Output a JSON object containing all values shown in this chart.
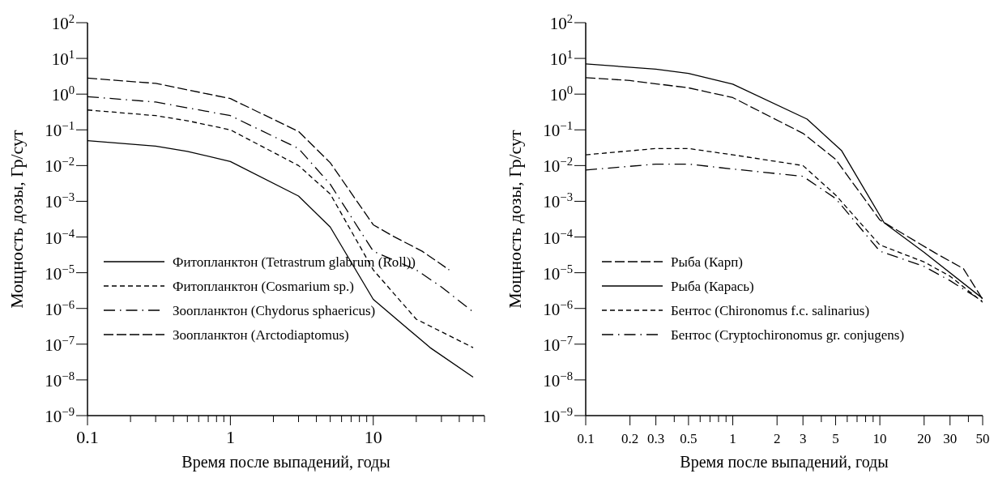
{
  "chart_data": [
    {
      "type": "line",
      "xlabel": "Время после выпадений, годы",
      "ylabel": "Мощность дозы, Гр/сут",
      "log": "xy",
      "legend": "bottom left",
      "xlim": [
        0.1,
        60
      ],
      "ylim": [
        1e-09,
        100
      ],
      "xticks": [
        0.1,
        {
          "value": 0.2,
          "label": null
        },
        {
          "value": 0.3,
          "label": null
        },
        {
          "value": 0.4,
          "label": null
        },
        {
          "value": 0.5,
          "label": null
        },
        {
          "value": 0.6,
          "label": null
        },
        {
          "value": 0.7,
          "label": null
        },
        {
          "value": 0.8,
          "label": null
        },
        {
          "value": 0.9,
          "label": null
        },
        1,
        {
          "value": 2,
          "label": null
        },
        {
          "value": 3,
          "label": null
        },
        {
          "value": 4,
          "label": null
        },
        {
          "value": 5,
          "label": null
        },
        {
          "value": 6,
          "label": null
        },
        {
          "value": 7,
          "label": null
        },
        {
          "value": 8,
          "label": null
        },
        {
          "value": 9,
          "label": null
        },
        10,
        {
          "value": 20,
          "label": null
        },
        {
          "value": 30,
          "label": null
        },
        {
          "value": 40,
          "label": null
        },
        {
          "value": 50,
          "label": null
        },
        {
          "value": 60,
          "label": null
        }
      ],
      "yticks": [
        {
          "value": 1e-09,
          "label": "10$^{−9}$"
        },
        {
          "value": 1e-08,
          "label": "10$^{−8}$"
        },
        {
          "value": 1e-07,
          "label": "10$^{−7}$"
        },
        {
          "value": 1e-06,
          "label": "10$^{−6}$"
        },
        {
          "value": 1e-05,
          "label": "10$^{−5}$"
        },
        {
          "value": 0.0001,
          "label": "10$^{−4}$"
        },
        {
          "value": 0.001,
          "label": "10$^{−3}$"
        },
        {
          "value": 0.01,
          "label": "10$^{−2}$"
        },
        {
          "value": 0.1,
          "label": "10$^{−1}$"
        },
        {
          "value": 1,
          "label": "10$^{0}$"
        },
        {
          "value": 10,
          "label": "10$^{1}$"
        },
        {
          "value": 100,
          "label": "10$^{2}$"
        }
      ],
      "series": [
        {
          "name": "Фитопланктон (Tetrastrum glabrum (Roll))",
          "color": "#000000",
          "line_style": "solid",
          "x": [
            0.1,
            0.3,
            0.5,
            1,
            3,
            5,
            10,
            25,
            50
          ],
          "values": [
            0.05,
            0.035,
            0.025,
            0.013,
            0.0014,
            0.00019,
            1.8e-06,
            8e-08,
            1.2e-08
          ]
        },
        {
          "name": "Фитопланктон (Cosmarium sp.)",
          "color": "#000000",
          "line_style": "dashed",
          "x": [
            0.1,
            0.3,
            0.5,
            1,
            3,
            5,
            10,
            20,
            50
          ],
          "values": [
            0.36,
            0.25,
            0.18,
            0.1,
            0.01,
            0.0016,
            1.2e-05,
            5e-07,
            8e-08
          ]
        },
        {
          "name": "Зоопланктон (Chydorus sphaericus)",
          "color": "#000000",
          "line_style": "dashdot",
          "x": [
            0.1,
            0.3,
            1,
            3,
            5,
            10,
            20,
            30,
            50
          ],
          "values": [
            0.85,
            0.6,
            0.25,
            0.03,
            0.003,
            4e-05,
            1.2e-05,
            4e-06,
            8e-07
          ]
        },
        {
          "name": "Зоопланктон (Arctodiaptomus)",
          "color": "#000000",
          "line_style": "longdash",
          "x": [
            0.1,
            0.3,
            1,
            3,
            5,
            10,
            13.5,
            22,
            34
          ],
          "values": [
            2.8,
            2.0,
            0.75,
            0.09,
            0.012,
            0.00022,
            0.00011,
            4e-05,
            1.2e-05
          ]
        }
      ]
    },
    {
      "type": "line",
      "xlabel": "Время после выпадений, годы",
      "ylabel": "Мощность дозы, Гр/сут",
      "log": "xy",
      "legend": "bottom left",
      "xlim": [
        0.1,
        50
      ],
      "ylim": [
        1e-09,
        100
      ],
      "xticks": [
        0.1,
        {
          "value": 0.2,
          "label": "0.2"
        },
        {
          "value": 0.3,
          "label": "0.3"
        },
        {
          "value": 0.4,
          "label": null
        },
        {
          "value": 0.5,
          "label": "0.5"
        },
        {
          "value": 0.6,
          "label": null
        },
        {
          "value": 0.7,
          "label": null
        },
        {
          "value": 0.8,
          "label": null
        },
        {
          "value": 0.9,
          "label": null
        },
        1,
        {
          "value": 2,
          "label": "2"
        },
        {
          "value": 3,
          "label": "3"
        },
        {
          "value": 4,
          "label": null
        },
        {
          "value": 5,
          "label": "5"
        },
        {
          "value": 6,
          "label": null
        },
        {
          "value": 7,
          "label": null
        },
        {
          "value": 8,
          "label": null
        },
        {
          "value": 9,
          "label": null
        },
        10,
        {
          "value": 20,
          "label": "20"
        },
        {
          "value": 30,
          "label": "30"
        },
        {
          "value": 40,
          "label": null
        },
        {
          "value": 50,
          "label": "50"
        }
      ],
      "yticks": [
        {
          "value": 1e-09,
          "label": "10$^{−9}$"
        },
        {
          "value": 1e-08,
          "label": "10$^{−8}$"
        },
        {
          "value": 1e-07,
          "label": "10$^{−7}$"
        },
        {
          "value": 1e-06,
          "label": "10$^{−6}$"
        },
        {
          "value": 1e-05,
          "label": "10$^{−5}$"
        },
        {
          "value": 0.0001,
          "label": "10$^{−4}$"
        },
        {
          "value": 0.001,
          "label": "10$^{−3}$"
        },
        {
          "value": 0.01,
          "label": "10$^{−2}$"
        },
        {
          "value": 0.1,
          "label": "10$^{−1}$"
        },
        {
          "value": 1,
          "label": "10$^{0}$"
        },
        {
          "value": 10,
          "label": "10$^{1}$"
        },
        {
          "value": 100,
          "label": "10$^{2}$"
        }
      ],
      "series": [
        {
          "name": "Рыба (Карп)",
          "color": "#000000",
          "line_style": "longdash",
          "x": [
            0.1,
            0.2,
            0.5,
            1,
            3,
            5,
            10,
            24,
            37,
            50
          ],
          "values": [
            2.9,
            2.4,
            1.5,
            0.8,
            0.08,
            0.015,
            0.0003,
            3.5e-05,
            1.3e-05,
            1.8e-06
          ]
        },
        {
          "name": "Рыба (Карась)",
          "color": "#000000",
          "line_style": "solid",
          "x": [
            0.1,
            0.3,
            0.5,
            1,
            3.2,
            5.5,
            10.7,
            20,
            50
          ],
          "values": [
            7,
            5,
            3.8,
            1.9,
            0.2,
            0.026,
            0.00025,
            3.7e-05,
            1.9e-06
          ]
        },
        {
          "name": "Бентос (Chironomus f.c. salinarius)",
          "color": "#000000",
          "line_style": "dashed",
          "x": [
            0.1,
            0.3,
            0.5,
            1,
            3,
            5,
            10,
            20,
            30,
            50
          ],
          "values": [
            0.02,
            0.03,
            0.03,
            0.02,
            0.01,
            0.0015,
            6e-05,
            2e-05,
            8e-06,
            1.5e-06
          ]
        },
        {
          "name": "Бентос (Cryptochironomus gr. conjugens)",
          "color": "#000000",
          "line_style": "dashdot",
          "x": [
            0.1,
            0.3,
            0.5,
            1,
            3,
            5,
            10,
            20,
            30,
            50
          ],
          "values": [
            0.0075,
            0.011,
            0.011,
            0.008,
            0.005,
            0.0012,
            4e-05,
            1.5e-05,
            6e-06,
            1.6e-06
          ]
        }
      ]
    }
  ]
}
